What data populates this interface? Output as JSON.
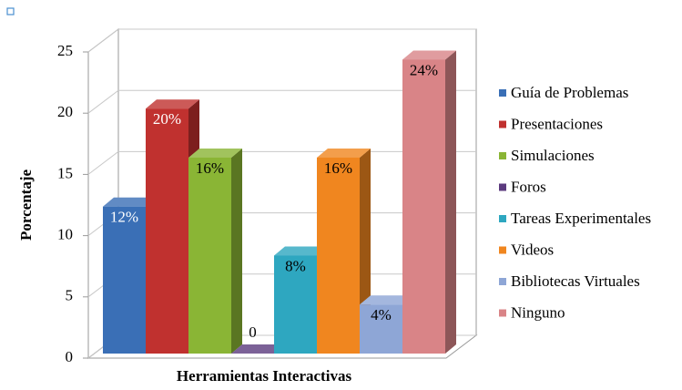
{
  "chart_data": {
    "type": "bar3d",
    "x_label": "Herramientas Interactivas",
    "y_label": "Porcentaje",
    "ylim": [
      0,
      25
    ],
    "yticks": [
      0,
      5,
      10,
      15,
      20,
      25
    ],
    "grid": true,
    "legend": "right",
    "series": [
      {
        "name": "Guía de Problemas",
        "color": "#3a6fb6",
        "values": [
          12
        ],
        "value_labels": [
          "12%"
        ]
      },
      {
        "name": "Presentaciones",
        "color": "#c0312f",
        "values": [
          20
        ],
        "value_labels": [
          "20%"
        ]
      },
      {
        "name": "Simulaciones",
        "color": "#8ab535",
        "values": [
          16
        ],
        "value_labels": [
          "16%"
        ]
      },
      {
        "name": "Foros",
        "color": "#5b3a7e",
        "values": [
          0
        ],
        "value_labels": [
          "0"
        ]
      },
      {
        "name": "Tareas Experimentales",
        "color": "#2ea7c0",
        "values": [
          8
        ],
        "value_labels": [
          "8%"
        ]
      },
      {
        "name": "Videos",
        "color": "#f0861f",
        "values": [
          16
        ],
        "value_labels": [
          "16%"
        ]
      },
      {
        "name": "Bibliotecas Virtuales",
        "color": "#8ea6d6",
        "values": [
          4
        ],
        "value_labels": [
          "4%"
        ]
      },
      {
        "name": "Ninguno",
        "color": "#d98487",
        "values": [
          24
        ],
        "value_labels": [
          "24%"
        ]
      }
    ]
  }
}
